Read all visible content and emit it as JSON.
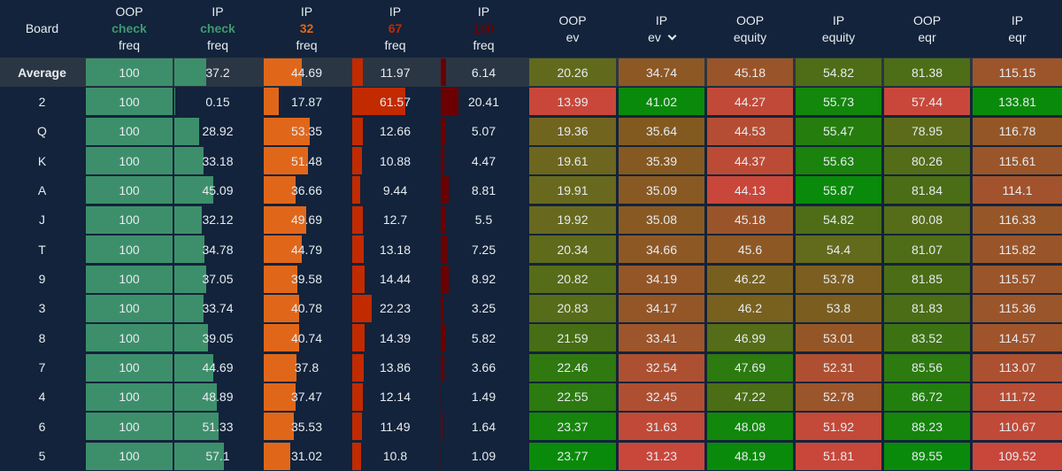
{
  "headers": [
    {
      "top": "",
      "mid": "Board",
      "bot": "",
      "color": ""
    },
    {
      "top": "OOP",
      "mid": "check",
      "bot": "freq",
      "color": "#3d9b6e"
    },
    {
      "top": "IP",
      "mid": "check",
      "bot": "freq",
      "color": "#3d9b6e"
    },
    {
      "top": "IP",
      "mid": "32",
      "bot": "freq",
      "color": "#e0671a"
    },
    {
      "top": "IP",
      "mid": "67",
      "bot": "freq",
      "color": "#c22a00"
    },
    {
      "top": "IP",
      "mid": "100",
      "bot": "freq",
      "color": "#6b0000"
    },
    {
      "top": "OOP",
      "mid": "ev",
      "bot": ""
    },
    {
      "top": "IP",
      "mid": "ev",
      "bot": "",
      "sorted": true
    },
    {
      "top": "OOP",
      "mid": "equity",
      "bot": ""
    },
    {
      "top": "IP",
      "mid": "equity",
      "bot": ""
    },
    {
      "top": "OOP",
      "mid": "eqr",
      "bot": ""
    },
    {
      "top": "IP",
      "mid": "eqr",
      "bot": ""
    }
  ],
  "bar_colors": [
    "#3d8f6b",
    "#3d8f6b",
    "#e0671a",
    "#c22a00",
    "#6b0000"
  ],
  "rows": [
    [
      "Average",
      "100",
      "37.2",
      "44.69",
      "11.97",
      "6.14",
      "20.26",
      "34.74",
      "45.18",
      "54.82",
      "81.38",
      "115.15"
    ],
    [
      "2",
      "100",
      "0.15",
      "17.87",
      "61.57",
      "20.41",
      "13.99",
      "41.02",
      "44.27",
      "55.73",
      "57.44",
      "133.81"
    ],
    [
      "Q",
      "100",
      "28.92",
      "53.35",
      "12.66",
      "5.07",
      "19.36",
      "35.64",
      "44.53",
      "55.47",
      "78.95",
      "116.78"
    ],
    [
      "K",
      "100",
      "33.18",
      "51.48",
      "10.88",
      "4.47",
      "19.61",
      "35.39",
      "44.37",
      "55.63",
      "80.26",
      "115.61"
    ],
    [
      "A",
      "100",
      "45.09",
      "36.66",
      "9.44",
      "8.81",
      "19.91",
      "35.09",
      "44.13",
      "55.87",
      "81.84",
      "114.1"
    ],
    [
      "J",
      "100",
      "32.12",
      "49.69",
      "12.7",
      "5.5",
      "19.92",
      "35.08",
      "45.18",
      "54.82",
      "80.08",
      "116.33"
    ],
    [
      "T",
      "100",
      "34.78",
      "44.79",
      "13.18",
      "7.25",
      "20.34",
      "34.66",
      "45.6",
      "54.4",
      "81.07",
      "115.82"
    ],
    [
      "9",
      "100",
      "37.05",
      "39.58",
      "14.44",
      "8.92",
      "20.82",
      "34.19",
      "46.22",
      "53.78",
      "81.85",
      "115.57"
    ],
    [
      "3",
      "100",
      "33.74",
      "40.78",
      "22.23",
      "3.25",
      "20.83",
      "34.17",
      "46.2",
      "53.8",
      "81.83",
      "115.36"
    ],
    [
      "8",
      "100",
      "39.05",
      "40.74",
      "14.39",
      "5.82",
      "21.59",
      "33.41",
      "46.99",
      "53.01",
      "83.52",
      "114.57"
    ],
    [
      "7",
      "100",
      "44.69",
      "37.8",
      "13.86",
      "3.66",
      "22.46",
      "32.54",
      "47.69",
      "52.31",
      "85.56",
      "113.07"
    ],
    [
      "4",
      "100",
      "48.89",
      "37.47",
      "12.14",
      "1.49",
      "22.55",
      "32.45",
      "47.22",
      "52.78",
      "86.72",
      "111.72"
    ],
    [
      "6",
      "100",
      "51.33",
      "35.53",
      "11.49",
      "1.64",
      "23.37",
      "31.63",
      "48.08",
      "51.92",
      "88.23",
      "110.67"
    ],
    [
      "5",
      "100",
      "57.1",
      "31.02",
      "10.8",
      "1.09",
      "23.77",
      "31.23",
      "48.19",
      "51.81",
      "89.55",
      "109.52"
    ]
  ]
}
